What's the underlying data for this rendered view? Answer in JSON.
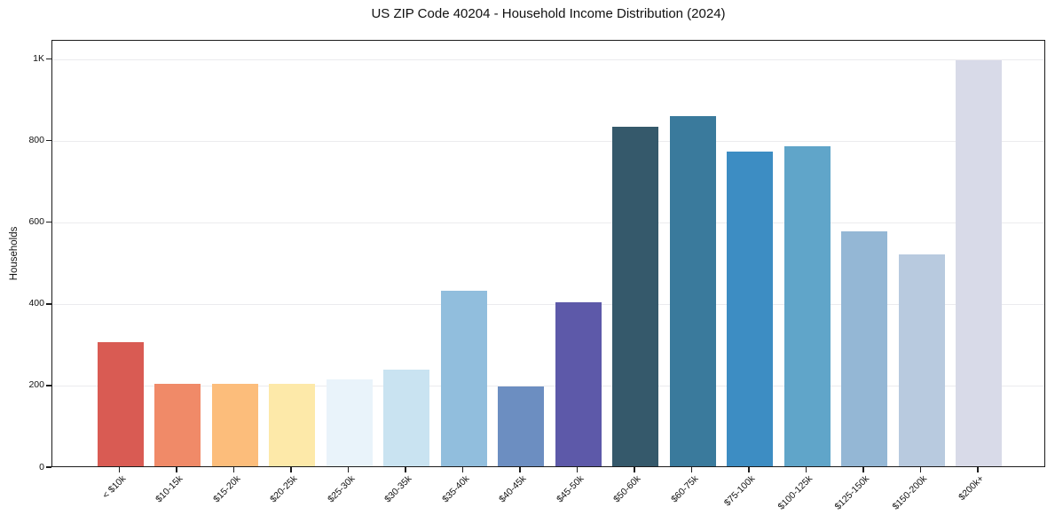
{
  "chart_data": {
    "type": "bar",
    "title": "US ZIP Code 40204 - Household Income Distribution (2024)",
    "xlabel": "",
    "ylabel": "Households",
    "categories": [
      "< $10k",
      "$10-15k",
      "$15-20k",
      "$20-25k",
      "$25-30k",
      "$30-35k",
      "$35-40k",
      "$40-45k",
      "$45-50k",
      "$50-60k",
      "$60-75k",
      "$75-100k",
      "$100-125k",
      "$125-150k",
      "$150-200k",
      "$200k+"
    ],
    "values": [
      305,
      202,
      202,
      203,
      212,
      237,
      430,
      196,
      402,
      833,
      857,
      771,
      785,
      576,
      520,
      995
    ],
    "bar_colors": [
      "#d95b53",
      "#f08a68",
      "#fcbd7b",
      "#fde9a9",
      "#e9f3fa",
      "#c9e3f1",
      "#91bedd",
      "#6c8ec1",
      "#5d59a9",
      "#35596b",
      "#3a7a9c",
      "#3d8dc3",
      "#60a5c9",
      "#94b7d5",
      "#b8cadf",
      "#d8dae8"
    ],
    "ytick_values": [
      0,
      200,
      400,
      600,
      800,
      1000
    ],
    "ytick_labels": [
      "0",
      "200",
      "400",
      "600",
      "800",
      "1K"
    ],
    "ylim": [
      0,
      1047
    ],
    "grid": "horizontal",
    "legend_position": "none",
    "background_color": "#ffffff",
    "axis_color": "#1c1c1c",
    "gridline_color": "#ebebee"
  }
}
